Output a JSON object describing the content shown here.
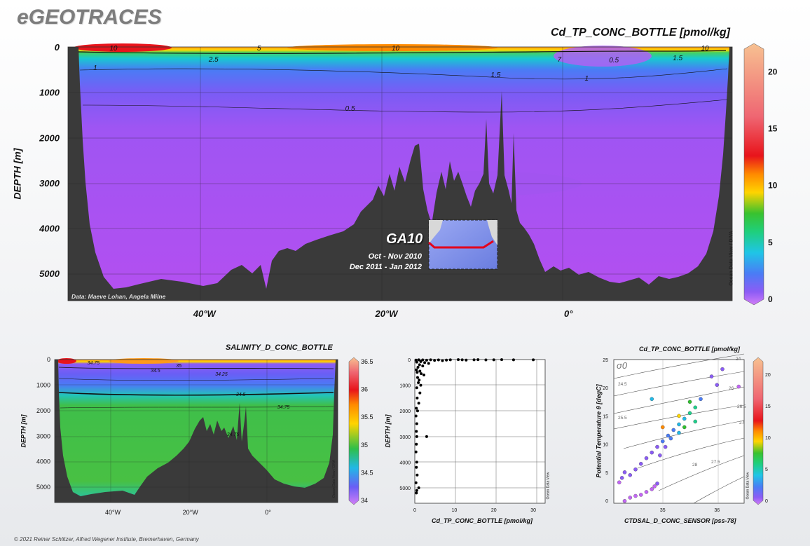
{
  "header": {
    "brand": "eGEOTRACES",
    "copyright": "© 2021 Reiner Schlitzer, Alfred Wegener Institute, Bremerhaven, Germany"
  },
  "colors": {
    "terrain": "#3a3a3a",
    "deep_purple": "#b04ff0",
    "surface_blue": "#6a5ef5",
    "green": "#3fbf4a",
    "track_red": "#e3001b",
    "colorbar": [
      "#c266f5",
      "#8a5cf5",
      "#4a7cf5",
      "#22b8e6",
      "#1fcf8c",
      "#2fbf2f",
      "#ffd400",
      "#ff8a00",
      "#e8141b",
      "#f0707a",
      "#f6b07a",
      "#f9c595"
    ]
  },
  "icons": {
    "colorbar_top": "pentagon-arrow-up",
    "colorbar_bottom": "pentagon-arrow-down"
  },
  "main": {
    "title": "Cd_TP_CONC_BOTTLE [pmol/kg]",
    "ylabel": "DEPTH [m]",
    "credit": "Data: Maeve Lohan, Angela Milne",
    "cruise": "GA10",
    "dates": [
      "Oct - Nov 2010",
      "Dec 2011 - Jan 2012"
    ],
    "colorbar_label": "Ocean Data View / DIVA"
  },
  "salinity": {
    "title": "SALINITY_D_CONC_BOTTLE",
    "ylabel": "DEPTH [m]",
    "colorbar_label": "Ocean Data View / DIVA"
  },
  "profile": {
    "xlabel": "Cd_TP_CONC_BOTTLE [pmol/kg]",
    "ylabel": "DEPTH [m]",
    "side_label": "Ocean Data View"
  },
  "ts": {
    "title": "Cd_TP_CONC_BOTTLE [pmol/kg]",
    "xlabel": "CTDSAL_D_CONC_SENSOR [pss-78]",
    "ylabel": "Potential Temperature θ [degC]",
    "sigma_label": "σ0",
    "colorbar_label": "Ocean Data View"
  },
  "chart_data": [
    {
      "type": "heatmap",
      "title": "Cd_TP_CONC_BOTTLE [pmol/kg]",
      "ylabel": "DEPTH [m]",
      "xticks": [
        "40°W",
        "20°W",
        "0°"
      ],
      "xtick_values": [
        -40,
        -20,
        0
      ],
      "xlim": [
        -55,
        18
      ],
      "yticks": [
        "0",
        "1000",
        "2000",
        "3000",
        "4000",
        "5000"
      ],
      "ylim": [
        0,
        5600
      ],
      "colorbar_ticks": [
        "0",
        "5",
        "10",
        "15",
        "20"
      ],
      "colorbar_range": [
        0,
        22
      ],
      "contours": [
        {
          "label": "10",
          "x": -50
        },
        {
          "label": "5",
          "x": -34
        },
        {
          "label": "10",
          "x": -19
        },
        {
          "label": "2.5",
          "x": -39
        },
        {
          "label": "1",
          "x": -52
        },
        {
          "label": "1.5",
          "x": -8
        },
        {
          "label": "1",
          "x": 2
        },
        {
          "label": "0.5",
          "x": -24
        },
        {
          "label": "7",
          "x": -1
        },
        {
          "label": "0.5",
          "x": 5
        },
        {
          "label": "1.5",
          "x": 12
        },
        {
          "label": "10",
          "x": 15
        }
      ]
    },
    {
      "type": "heatmap",
      "title": "SALINITY_D_CONC_BOTTLE",
      "ylabel": "DEPTH [m]",
      "xticks": [
        "40°W",
        "20°W",
        "0°"
      ],
      "xtick_values": [
        -40,
        -20,
        0
      ],
      "xlim": [
        -55,
        18
      ],
      "yticks": [
        "0",
        "1000",
        "2000",
        "3000",
        "4000",
        "5000"
      ],
      "ylim": [
        0,
        5600
      ],
      "colorbar_ticks": [
        "34",
        "34.5",
        "35",
        "35.5",
        "36",
        "36.5"
      ],
      "colorbar_range": [
        34,
        36.5
      ],
      "contours": [
        {
          "label": "34.75",
          "x": -45
        },
        {
          "label": "34.5",
          "x": -29
        },
        {
          "label": "35",
          "x": -23
        },
        {
          "label": "34.25",
          "x": -12
        },
        {
          "label": "34.5",
          "x": -7
        },
        {
          "label": "34.75",
          "x": 4
        },
        {
          "label": "34.75",
          "x": -9
        }
      ]
    },
    {
      "type": "scatter",
      "title": "",
      "xlabel": "Cd_TP_CONC_BOTTLE [pmol/kg]",
      "ylabel": "DEPTH [m]",
      "xticks": [
        "0",
        "10",
        "20",
        "30"
      ],
      "xlim": [
        0,
        33
      ],
      "yticks": [
        "0",
        "1000",
        "2000",
        "3000",
        "4000",
        "5000"
      ],
      "ylim": [
        0,
        5600
      ],
      "points": [
        {
          "x": 0.3,
          "y": 20
        },
        {
          "x": 1,
          "y": 10
        },
        {
          "x": 2,
          "y": 15
        },
        {
          "x": 3,
          "y": 25
        },
        {
          "x": 4,
          "y": 10
        },
        {
          "x": 5,
          "y": 30
        },
        {
          "x": 6,
          "y": 15
        },
        {
          "x": 7,
          "y": 40
        },
        {
          "x": 8,
          "y": 20
        },
        {
          "x": 9,
          "y": 10
        },
        {
          "x": 11,
          "y": 5
        },
        {
          "x": 12,
          "y": 10
        },
        {
          "x": 13,
          "y": 20
        },
        {
          "x": 15,
          "y": 10
        },
        {
          "x": 16,
          "y": 5
        },
        {
          "x": 18,
          "y": 15
        },
        {
          "x": 20,
          "y": 10
        },
        {
          "x": 22,
          "y": 5
        },
        {
          "x": 25,
          "y": 10
        },
        {
          "x": 30,
          "y": 10
        },
        {
          "x": 0.5,
          "y": 100
        },
        {
          "x": 1.5,
          "y": 80
        },
        {
          "x": 2.5,
          "y": 120
        },
        {
          "x": 3.5,
          "y": 150
        },
        {
          "x": 1.2,
          "y": 200
        },
        {
          "x": 0.8,
          "y": 300
        },
        {
          "x": 2,
          "y": 250
        },
        {
          "x": 0.4,
          "y": 400
        },
        {
          "x": 1.3,
          "y": 450
        },
        {
          "x": 0.6,
          "y": 500
        },
        {
          "x": 1.6,
          "y": 550
        },
        {
          "x": 2.3,
          "y": 600
        },
        {
          "x": 0.7,
          "y": 700
        },
        {
          "x": 1.1,
          "y": 800
        },
        {
          "x": 0.9,
          "y": 900
        },
        {
          "x": 1.5,
          "y": 1000
        },
        {
          "x": 0.5,
          "y": 1100
        },
        {
          "x": 1.3,
          "y": 1300
        },
        {
          "x": 0.6,
          "y": 1500
        },
        {
          "x": 1,
          "y": 1700
        },
        {
          "x": 0.4,
          "y": 1900
        },
        {
          "x": 0.7,
          "y": 2000
        },
        {
          "x": 0.3,
          "y": 2200
        },
        {
          "x": 0.5,
          "y": 2500
        },
        {
          "x": 0.4,
          "y": 2800
        },
        {
          "x": 0.5,
          "y": 3000
        },
        {
          "x": 3,
          "y": 3000
        },
        {
          "x": 0.4,
          "y": 3300
        },
        {
          "x": 0.3,
          "y": 3600
        },
        {
          "x": 0.5,
          "y": 4000
        },
        {
          "x": 0.4,
          "y": 4200
        },
        {
          "x": 0.6,
          "y": 4500
        },
        {
          "x": 0.3,
          "y": 4800
        },
        {
          "x": 1,
          "y": 5000
        },
        {
          "x": 0.5,
          "y": 5100
        },
        {
          "x": 0.4,
          "y": 5200
        }
      ]
    },
    {
      "type": "scatter",
      "title": "Cd_TP_CONC_BOTTLE [pmol/kg]",
      "xlabel": "CTDSAL_D_CONC_SENSOR [pss-78]",
      "ylabel": "Potential Temperature θ [degC]",
      "xticks": [
        "35",
        "36"
      ],
      "xtick_values": [
        35,
        36
      ],
      "xlim": [
        34.1,
        36.5
      ],
      "yticks": [
        "0",
        "5",
        "10",
        "15",
        "20",
        "25"
      ],
      "ylim": [
        -0.5,
        25
      ],
      "isopycnals": [
        "24",
        "24.5",
        "25.5",
        "26",
        "26.5",
        "27",
        "27.5",
        "28"
      ],
      "colorbar_ticks": [
        "0",
        "5",
        "10",
        "15",
        "20"
      ],
      "colorbar_range": [
        0,
        22
      ],
      "points": [
        {
          "x": 34.3,
          "y": -0.1,
          "c": 0.5
        },
        {
          "x": 34.4,
          "y": 0.5,
          "c": 0.5
        },
        {
          "x": 34.5,
          "y": 0.8,
          "c": 0.6
        },
        {
          "x": 34.6,
          "y": 1.0,
          "c": 0.7
        },
        {
          "x": 34.7,
          "y": 1.5,
          "c": 0.8
        },
        {
          "x": 34.8,
          "y": 2.0,
          "c": 0.9
        },
        {
          "x": 34.85,
          "y": 2.5,
          "c": 0.9
        },
        {
          "x": 34.9,
          "y": 3.0,
          "c": 1.0
        },
        {
          "x": 34.2,
          "y": 3.2,
          "c": 0.8
        },
        {
          "x": 34.25,
          "y": 4.0,
          "c": 1.0
        },
        {
          "x": 34.3,
          "y": 5.0,
          "c": 1.2
        },
        {
          "x": 34.4,
          "y": 4.5,
          "c": 1.1
        },
        {
          "x": 34.5,
          "y": 5.5,
          "c": 1.3
        },
        {
          "x": 34.6,
          "y": 6.5,
          "c": 1.5
        },
        {
          "x": 34.7,
          "y": 7.5,
          "c": 1.8
        },
        {
          "x": 34.8,
          "y": 8.5,
          "c": 2.0
        },
        {
          "x": 34.9,
          "y": 9.5,
          "c": 2.5
        },
        {
          "x": 35.0,
          "y": 10.5,
          "c": 3.0
        },
        {
          "x": 35.1,
          "y": 11.5,
          "c": 3.5
        },
        {
          "x": 35.2,
          "y": 12.5,
          "c": 4.0
        },
        {
          "x": 35.3,
          "y": 13.5,
          "c": 5.0
        },
        {
          "x": 35.4,
          "y": 14.5,
          "c": 6.0
        },
        {
          "x": 35.5,
          "y": 15.5,
          "c": 7.0
        },
        {
          "x": 35.6,
          "y": 16.5,
          "c": 8.0
        },
        {
          "x": 35.5,
          "y": 17.5,
          "c": 10.0
        },
        {
          "x": 35.3,
          "y": 15.0,
          "c": 12.0
        },
        {
          "x": 35.0,
          "y": 13.0,
          "c": 15.0
        },
        {
          "x": 34.8,
          "y": 18.0,
          "c": 5.0
        },
        {
          "x": 35.7,
          "y": 18.0,
          "c": 3.0
        },
        {
          "x": 36.0,
          "y": 20.5,
          "c": 1.0
        },
        {
          "x": 35.9,
          "y": 22.0,
          "c": 2.0
        },
        {
          "x": 36.4,
          "y": 20.2,
          "c": 0.5
        },
        {
          "x": 36.1,
          "y": 23.3,
          "c": 1.0
        },
        {
          "x": 35.3,
          "y": 12.0,
          "c": 6.0
        },
        {
          "x": 35.4,
          "y": 13.0,
          "c": 9.0
        },
        {
          "x": 35.15,
          "y": 11.0,
          "c": 4.5
        },
        {
          "x": 35.05,
          "y": 9.5,
          "c": 2.5
        },
        {
          "x": 34.95,
          "y": 8.0,
          "c": 2.0
        },
        {
          "x": 35.6,
          "y": 14.0,
          "c": 7.0
        }
      ]
    }
  ]
}
